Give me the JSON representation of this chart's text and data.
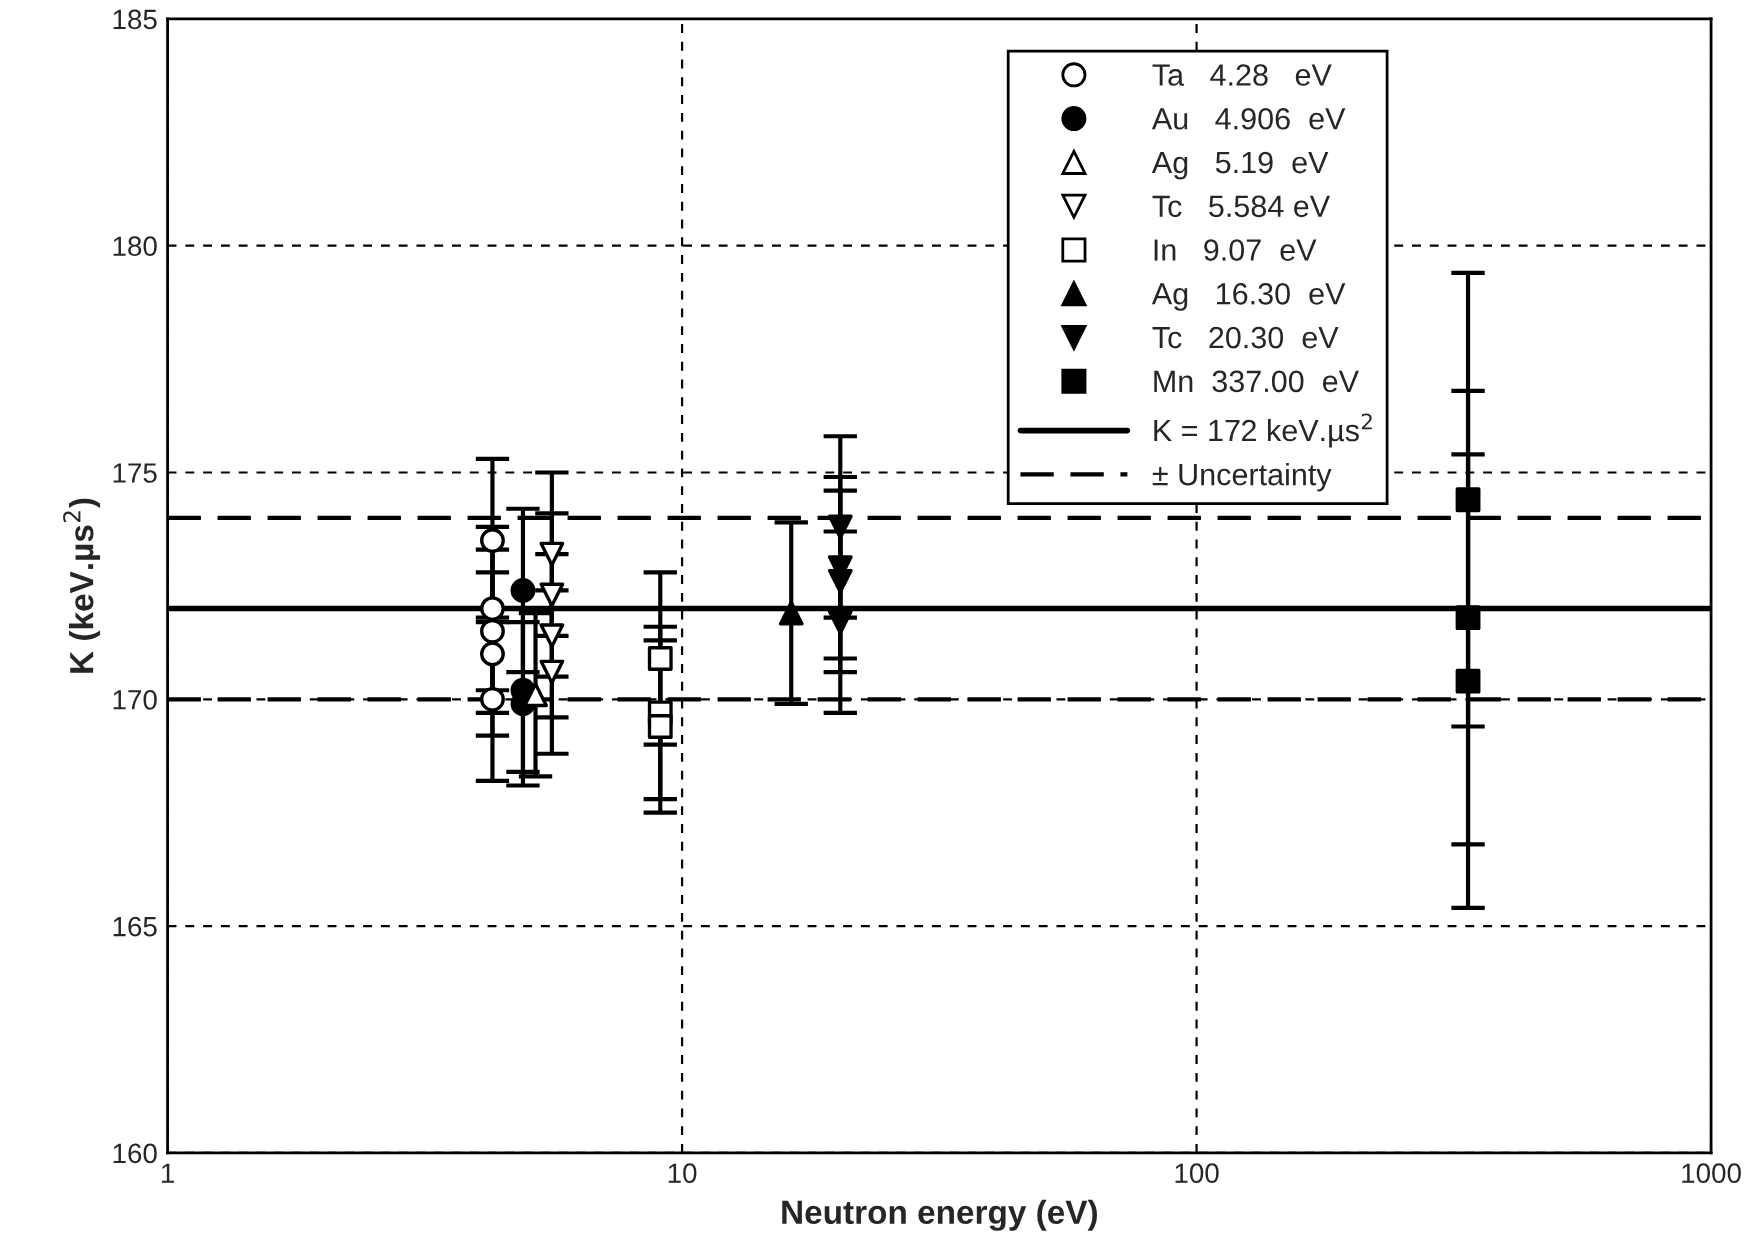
{
  "chart_data": {
    "type": "scatter",
    "xlabel": "Neutron energy (eV)",
    "ylabel": "K (keV.µs$^{2}$)",
    "log": "x",
    "xlim": [
      1,
      1000
    ],
    "xticks": [
      1,
      10,
      100,
      1000
    ],
    "ylim": [
      160,
      185
    ],
    "yticks": [
      160,
      165,
      170,
      175,
      180,
      185
    ],
    "grid": true,
    "legend": "top right",
    "series": [
      {
        "name": "Ta   4.28   eV",
        "marker": "circle",
        "color": "#ffffff",
        "x": [
          4.28,
          4.28,
          4.28,
          4.28,
          4.28
        ],
        "values": [
          173.5,
          172.0,
          171.5,
          171.0,
          170.0
        ],
        "errors": [
          1.8,
          1.8,
          1.8,
          1.8,
          1.8
        ]
      },
      {
        "name": "Au   4.906  eV",
        "marker": "circle",
        "color": "#000000",
        "x": [
          4.906,
          4.906,
          4.906
        ],
        "values": [
          172.4,
          170.2,
          169.9
        ],
        "errors": [
          1.8,
          1.8,
          1.8
        ]
      },
      {
        "name": "Ag   5.19  eV",
        "marker": "triangle",
        "color": "#ffffff",
        "x": [
          5.19
        ],
        "values": [
          170.1
        ],
        "errors": [
          1.8
        ]
      },
      {
        "name": "Tc   5.584 eV",
        "marker": "triangle_down",
        "color": "#ffffff",
        "x": [
          5.584,
          5.584,
          5.584,
          5.584
        ],
        "values": [
          173.2,
          172.3,
          171.4,
          170.6
        ],
        "errors": [
          1.8,
          1.8,
          1.8,
          1.8
        ]
      },
      {
        "name": "In   9.07  eV",
        "marker": "square",
        "color": "#ffffff",
        "x": [
          9.07,
          9.07,
          9.07
        ],
        "values": [
          170.9,
          169.7,
          169.4
        ],
        "errors": [
          1.9,
          1.9,
          1.9
        ]
      },
      {
        "name": "Ag   16.30  eV",
        "marker": "triangle",
        "color": "#000000",
        "x": [
          16.3
        ],
        "values": [
          171.9
        ],
        "errors": [
          2.0
        ]
      },
      {
        "name": "Tc   20.30  eV",
        "marker": "triangle_down",
        "color": "#000000",
        "x": [
          20.3,
          20.3,
          20.3,
          20.3
        ],
        "values": [
          173.8,
          172.9,
          172.6,
          171.7
        ],
        "errors": [
          2.0,
          2.0,
          2.0,
          2.0
        ]
      },
      {
        "name": "Mn  337.00  eV",
        "marker": "square",
        "color": "#000000",
        "x": [
          337,
          337,
          337
        ],
        "values": [
          174.4,
          171.8,
          170.4
        ],
        "errors": [
          5.0,
          5.0,
          5.0
        ]
      }
    ],
    "ref_lines": [
      {
        "axis": "y",
        "value": 172,
        "label": "K = 172 keV.µs$^{2}$",
        "line_style": "solid"
      },
      {
        "axis": "y",
        "value": 174,
        "label": "± Uncertainty",
        "line_style": "dashed"
      },
      {
        "axis": "y",
        "value": 170,
        "line_style": "dashed"
      }
    ]
  }
}
